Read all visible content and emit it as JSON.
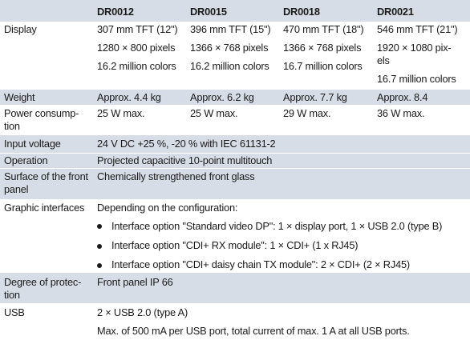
{
  "header": {
    "col1": "DR0012",
    "col2": "DR0015",
    "col3": "DR0018",
    "col4": "DR0021"
  },
  "display": {
    "label": "Display",
    "size": [
      "307 mm TFT (12\")",
      "396 mm TFT (15\")",
      "470 mm TFT (18\")",
      "546 mm TFT (21\")"
    ],
    "resolution": [
      "1280 × 800 pixels",
      "1366 × 768 pixels",
      "1366 × 768 pixels",
      "1920 × 1080 pix-els"
    ],
    "colors": [
      "16.2 million colors",
      "16.2 million colors",
      "16.7 million colors",
      "16.7 million colors"
    ]
  },
  "weight": {
    "label": "Weight",
    "values": [
      "Approx. 4.4 kg",
      "Approx. 6.2 kg",
      "Approx. 7.7 kg",
      "Approx. 8.4"
    ]
  },
  "power": {
    "label": "Power consump-tion",
    "values": [
      "25 W max.",
      "25 W max.",
      "29 W max.",
      "36 W max."
    ]
  },
  "input_voltage": {
    "label": "Input voltage",
    "value": "24 V DC +25 %, -20 % with IEC 61131-2"
  },
  "operation": {
    "label": "Operation",
    "value": "Projected capacitive 10-point multitouch"
  },
  "surface": {
    "label": "Surface of the front panel",
    "value": "Chemically strengthened front glass"
  },
  "graphic": {
    "label": "Graphic interfaces",
    "intro": "Depending on the configuration:",
    "options": [
      "Interface option \"Standard video DP\": 1 × display port, 1 × USB 2.0 (type B)",
      "Interface option \"CDI+ RX module\": 1 × CDI+ (1 x RJ45)",
      "Interface option \"CDI+ daisy chain TX module\": 2 × CDI+ (2 × RJ45)"
    ]
  },
  "protection": {
    "label": "Degree of protec-tion",
    "value": "Front panel IP 66"
  },
  "usb": {
    "label": "USB",
    "line1": "2 × USB 2.0 (type A)",
    "line2": "Max. of 500 mA per USB port, total current of max. 1 A at all USB ports."
  }
}
